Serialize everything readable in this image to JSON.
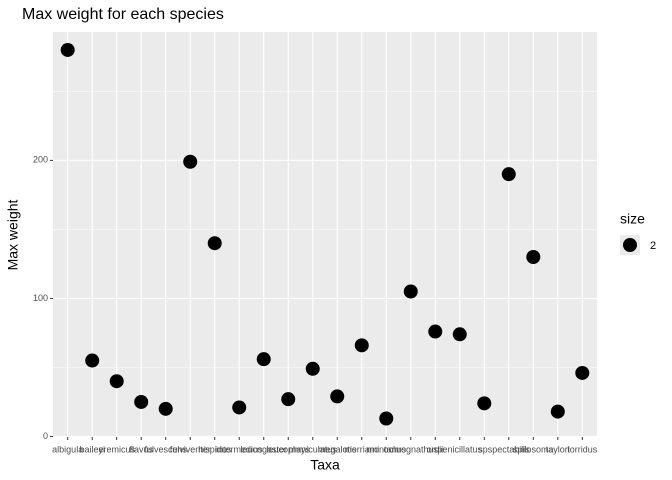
{
  "chart_data": {
    "type": "scatter",
    "title": "Max weight for each species",
    "x_label": "Taxa",
    "y_label": "Max weight",
    "categories": [
      "albigula",
      "baileyi",
      "eremicus",
      "flavus",
      "fulvescens",
      "fulviventer",
      "hispidus",
      "intermedius",
      "leucogaster",
      "leucophrys",
      "maniculatus",
      "megalotis",
      "merriami",
      "montanus",
      "ochrognathus",
      "ordii",
      "penicillatus",
      "sp.",
      "spectabilis",
      "spilosoma",
      "taylori",
      "torridus"
    ],
    "values": [
      280,
      55,
      40,
      25,
      20,
      199,
      140,
      21,
      56,
      27,
      49,
      29,
      66,
      13,
      105,
      76,
      74,
      24,
      190,
      130,
      18,
      46
    ],
    "color": "#000000",
    "ylim": [
      -0.4,
      293
    ],
    "yticks": [
      0,
      100,
      200
    ],
    "minor_grid": [
      50,
      150,
      250
    ],
    "grid": true,
    "legend": {
      "title": "size",
      "labels": [
        "2"
      ],
      "position": "right"
    }
  }
}
